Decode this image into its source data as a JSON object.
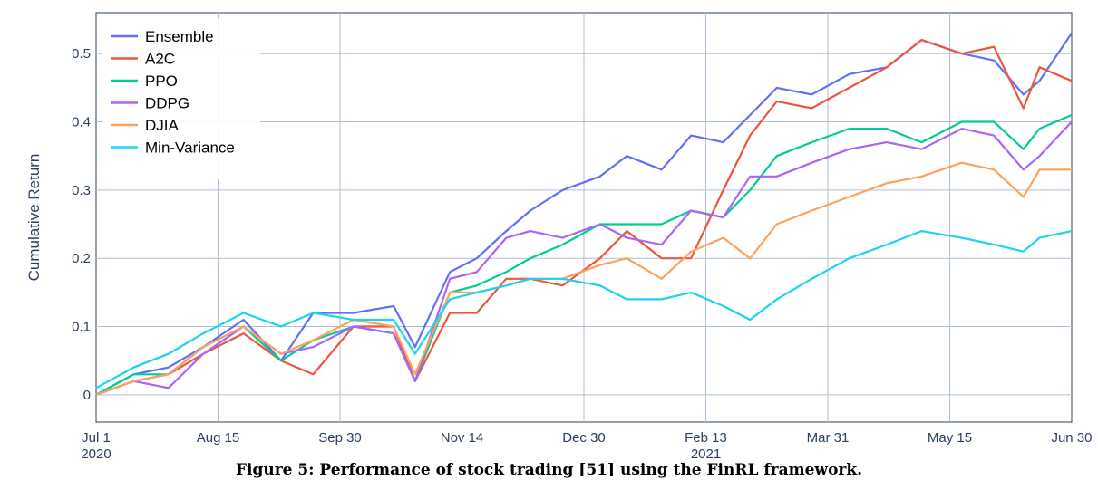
{
  "caption": "Figure 5: Performance of stock trading [51] using the FinRL framework.",
  "chart_data": {
    "type": "line",
    "title": "",
    "xlabel": "",
    "ylabel": "Cumulative Return",
    "x_ticks": [
      "Jul 1\n2020",
      "Aug 15",
      "Sep 30",
      "Nov 14",
      "Dec 30",
      "Feb 13\n2021",
      "Mar 31",
      "May 15",
      "Jun 30"
    ],
    "y_ticks": [
      "0",
      "0.1",
      "0.2",
      "0.3",
      "0.4",
      "0.5"
    ],
    "xlim": [
      "2020-07-01",
      "2021-06-30"
    ],
    "ylim": [
      -0.04,
      0.56
    ],
    "grid": true,
    "legend": "top-left",
    "series": [
      {
        "name": "Ensemble",
        "color": "#636efa",
        "x": [
          "2020-07-01",
          "2020-07-15",
          "2020-07-28",
          "2020-08-10",
          "2020-08-25",
          "2020-09-08",
          "2020-09-20",
          "2020-10-05",
          "2020-10-20",
          "2020-10-28",
          "2020-11-10",
          "2020-11-20",
          "2020-12-01",
          "2020-12-10",
          "2020-12-22",
          "2021-01-05",
          "2021-01-15",
          "2021-01-28",
          "2021-02-08",
          "2021-02-20",
          "2021-03-02",
          "2021-03-12",
          "2021-03-25",
          "2021-04-08",
          "2021-04-22",
          "2021-05-05",
          "2021-05-20",
          "2021-06-01",
          "2021-06-12",
          "2021-06-18",
          "2021-06-30"
        ],
        "y": [
          0.0,
          0.03,
          0.04,
          0.07,
          0.11,
          0.05,
          0.12,
          0.12,
          0.13,
          0.07,
          0.18,
          0.2,
          0.24,
          0.27,
          0.3,
          0.32,
          0.35,
          0.33,
          0.38,
          0.37,
          0.41,
          0.45,
          0.44,
          0.47,
          0.48,
          0.52,
          0.5,
          0.49,
          0.44,
          0.46,
          0.53
        ]
      },
      {
        "name": "A2C",
        "color": "#ef553b",
        "x": [
          "2020-07-01",
          "2020-07-15",
          "2020-07-28",
          "2020-08-10",
          "2020-08-25",
          "2020-09-08",
          "2020-09-20",
          "2020-10-05",
          "2020-10-20",
          "2020-10-28",
          "2020-11-10",
          "2020-11-20",
          "2020-12-01",
          "2020-12-10",
          "2020-12-22",
          "2021-01-05",
          "2021-01-15",
          "2021-01-28",
          "2021-02-08",
          "2021-02-20",
          "2021-03-02",
          "2021-03-12",
          "2021-03-25",
          "2021-04-08",
          "2021-04-22",
          "2021-05-05",
          "2021-05-20",
          "2021-06-01",
          "2021-06-12",
          "2021-06-18",
          "2021-06-30"
        ],
        "y": [
          0.0,
          0.02,
          0.03,
          0.06,
          0.09,
          0.05,
          0.03,
          0.1,
          0.1,
          0.02,
          0.12,
          0.12,
          0.17,
          0.17,
          0.16,
          0.2,
          0.24,
          0.2,
          0.2,
          0.3,
          0.38,
          0.43,
          0.42,
          0.45,
          0.48,
          0.52,
          0.5,
          0.51,
          0.42,
          0.48,
          0.46
        ]
      },
      {
        "name": "PPO",
        "color": "#00cc96",
        "x": [
          "2020-07-01",
          "2020-07-15",
          "2020-07-28",
          "2020-08-10",
          "2020-08-25",
          "2020-09-08",
          "2020-09-20",
          "2020-10-05",
          "2020-10-20",
          "2020-10-28",
          "2020-11-10",
          "2020-11-20",
          "2020-12-01",
          "2020-12-10",
          "2020-12-22",
          "2021-01-05",
          "2021-01-15",
          "2021-01-28",
          "2021-02-08",
          "2021-02-20",
          "2021-03-02",
          "2021-03-12",
          "2021-03-25",
          "2021-04-08",
          "2021-04-22",
          "2021-05-05",
          "2021-05-20",
          "2021-06-01",
          "2021-06-12",
          "2021-06-18",
          "2021-06-30"
        ],
        "y": [
          0.0,
          0.03,
          0.03,
          0.07,
          0.1,
          0.05,
          0.08,
          0.1,
          0.09,
          0.02,
          0.15,
          0.16,
          0.18,
          0.2,
          0.22,
          0.25,
          0.25,
          0.25,
          0.27,
          0.26,
          0.3,
          0.35,
          0.37,
          0.39,
          0.39,
          0.37,
          0.4,
          0.4,
          0.36,
          0.39,
          0.41
        ]
      },
      {
        "name": "DDPG",
        "color": "#ab63fa",
        "x": [
          "2020-07-01",
          "2020-07-15",
          "2020-07-28",
          "2020-08-10",
          "2020-08-25",
          "2020-09-08",
          "2020-09-20",
          "2020-10-05",
          "2020-10-20",
          "2020-10-28",
          "2020-11-10",
          "2020-11-20",
          "2020-12-01",
          "2020-12-10",
          "2020-12-22",
          "2021-01-05",
          "2021-01-15",
          "2021-01-28",
          "2021-02-08",
          "2021-02-20",
          "2021-03-02",
          "2021-03-12",
          "2021-03-25",
          "2021-04-08",
          "2021-04-22",
          "2021-05-05",
          "2021-05-20",
          "2021-06-01",
          "2021-06-12",
          "2021-06-18",
          "2021-06-30"
        ],
        "y": [
          0.0,
          0.02,
          0.01,
          0.06,
          0.1,
          0.06,
          0.07,
          0.1,
          0.09,
          0.02,
          0.17,
          0.18,
          0.23,
          0.24,
          0.23,
          0.25,
          0.23,
          0.22,
          0.27,
          0.26,
          0.32,
          0.32,
          0.34,
          0.36,
          0.37,
          0.36,
          0.39,
          0.38,
          0.33,
          0.35,
          0.4
        ]
      },
      {
        "name": "DJIA",
        "color": "#ffa15a",
        "x": [
          "2020-07-01",
          "2020-07-15",
          "2020-07-28",
          "2020-08-10",
          "2020-08-25",
          "2020-09-08",
          "2020-09-20",
          "2020-10-05",
          "2020-10-20",
          "2020-10-28",
          "2020-11-10",
          "2020-11-20",
          "2020-12-01",
          "2020-12-10",
          "2020-12-22",
          "2021-01-05",
          "2021-01-15",
          "2021-01-28",
          "2021-02-08",
          "2021-02-20",
          "2021-03-02",
          "2021-03-12",
          "2021-03-25",
          "2021-04-08",
          "2021-04-22",
          "2021-05-05",
          "2021-05-20",
          "2021-06-01",
          "2021-06-12",
          "2021-06-18",
          "2021-06-30"
        ],
        "y": [
          0.0,
          0.02,
          0.03,
          0.07,
          0.1,
          0.06,
          0.08,
          0.11,
          0.1,
          0.03,
          0.15,
          0.15,
          0.16,
          0.17,
          0.17,
          0.19,
          0.2,
          0.17,
          0.21,
          0.23,
          0.2,
          0.25,
          0.27,
          0.29,
          0.31,
          0.32,
          0.34,
          0.33,
          0.29,
          0.33,
          0.33
        ]
      },
      {
        "name": "Min-Variance",
        "color": "#19d3f3",
        "x": [
          "2020-07-01",
          "2020-07-15",
          "2020-07-28",
          "2020-08-10",
          "2020-08-25",
          "2020-09-08",
          "2020-09-20",
          "2020-10-05",
          "2020-10-20",
          "2020-10-28",
          "2020-11-10",
          "2020-11-20",
          "2020-12-01",
          "2020-12-10",
          "2020-12-22",
          "2021-01-05",
          "2021-01-15",
          "2021-01-28",
          "2021-02-08",
          "2021-02-20",
          "2021-03-02",
          "2021-03-12",
          "2021-03-25",
          "2021-04-08",
          "2021-04-22",
          "2021-05-05",
          "2021-05-20",
          "2021-06-01",
          "2021-06-12",
          "2021-06-18",
          "2021-06-30"
        ],
        "y": [
          0.01,
          0.04,
          0.06,
          0.09,
          0.12,
          0.1,
          0.12,
          0.11,
          0.11,
          0.06,
          0.14,
          0.15,
          0.16,
          0.17,
          0.17,
          0.16,
          0.14,
          0.14,
          0.15,
          0.13,
          0.11,
          0.14,
          0.17,
          0.2,
          0.22,
          0.24,
          0.23,
          0.22,
          0.21,
          0.23,
          0.24
        ]
      }
    ]
  }
}
